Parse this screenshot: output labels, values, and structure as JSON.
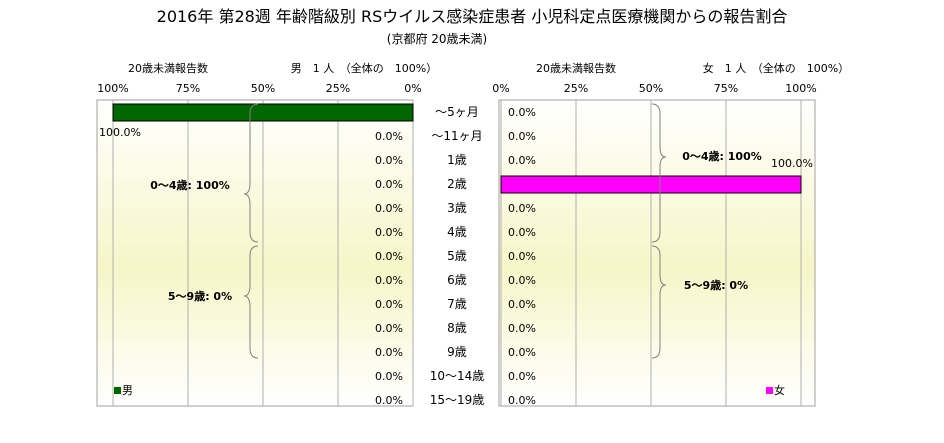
{
  "chart_data": {
    "type": "bar",
    "title": "2016年 第28週 年齢階級別 RSウイルス感染症患者 小児科定点医療機関からの報告割合",
    "subtitle": "(京都府 20歳未満)",
    "categories": [
      "～5ヶ月",
      "～11ヶ月",
      "1歳",
      "2歳",
      "3歳",
      "4歳",
      "5歳",
      "6歳",
      "7歳",
      "8歳",
      "9歳",
      "10～14歳",
      "15～19歳"
    ],
    "xlim": [
      0,
      100
    ],
    "axis_ticks": [
      "0%",
      "25%",
      "50%",
      "75%",
      "100%"
    ],
    "grid": true,
    "series": [
      {
        "name": "男",
        "header_left": "20歳未満報告数",
        "header_right": "男　1 人　（全体の　100%）",
        "color": "#006600",
        "values": [
          100,
          0,
          0,
          0,
          0,
          0,
          0,
          0,
          0,
          0,
          0,
          0,
          0
        ],
        "labels": [
          "100.0%",
          "0.0%",
          "0.0%",
          "0.0%",
          "0.0%",
          "0.0%",
          "0.0%",
          "0.0%",
          "0.0%",
          "0.0%",
          "0.0%",
          "0.0%",
          "0.0%"
        ],
        "group_0_4": "0～4歳: 100%",
        "group_5_9": "5～9歳: 0%"
      },
      {
        "name": "女",
        "header_left": "20歳未満報告数",
        "header_right": "女　1 人　（全体の　100%）",
        "color": "#ff00ff",
        "values": [
          0,
          0,
          0,
          100,
          0,
          0,
          0,
          0,
          0,
          0,
          0,
          0,
          0
        ],
        "labels": [
          "0.0%",
          "0.0%",
          "0.0%",
          "100.0%",
          "0.0%",
          "0.0%",
          "0.0%",
          "0.0%",
          "0.0%",
          "0.0%",
          "0.0%",
          "0.0%",
          "0.0%"
        ],
        "group_0_4": "0～4歳: 100%",
        "group_5_9": "5～9歳: 0%"
      }
    ]
  }
}
